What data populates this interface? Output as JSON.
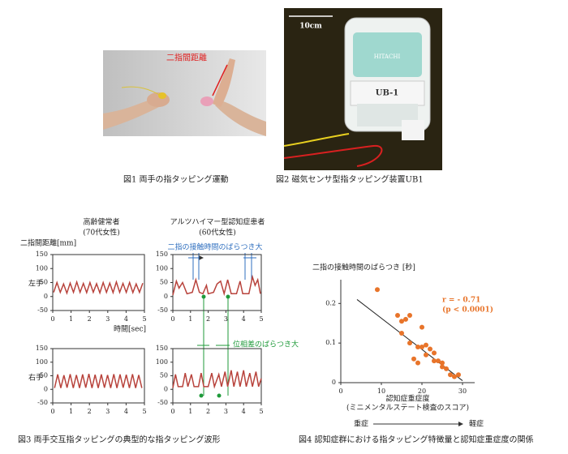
{
  "figure1": {
    "label": "二指間距離",
    "caption": "図1 両手の指タッピング運動"
  },
  "figure2": {
    "scale_label": "10cm",
    "brand": "HITACHI",
    "model": "UB-1",
    "caption": "図2 磁気センサ型指タッピング装置UB1"
  },
  "figure3": {
    "columns": [
      {
        "name": "高齢健常者",
        "detail": "(70代女性)"
      },
      {
        "name": "アルツハイマー型認知症患者",
        "detail": "(60代女性)"
      }
    ],
    "rows": [
      "左手",
      "右手"
    ],
    "y_label": "二指間距離[mm]",
    "x_label": "時間[sec]",
    "annotations": [
      "二指の接触時間のばらつき大",
      "位相差のばらつき大"
    ],
    "caption": "図3 両手交互指タッピングの典型的な指タッピング波形"
  },
  "chart_data": [
    {
      "type": "line",
      "xlim": [
        0,
        5
      ],
      "xticks": [
        0,
        1,
        2,
        3,
        4,
        5
      ],
      "ylim": [
        -50,
        150
      ],
      "yticks": [
        150,
        100,
        50,
        0,
        -50
      ],
      "x": [
        0.05,
        0.23,
        0.41,
        0.59,
        0.77,
        0.95,
        1.13,
        1.31,
        1.49,
        1.67,
        1.85,
        2.03,
        2.21,
        2.39,
        2.57,
        2.75,
        2.93,
        3.11,
        3.29,
        3.47,
        3.65,
        3.83,
        4.01,
        4.19,
        4.37,
        4.55,
        4.73,
        4.91
      ],
      "series": [
        {
          "color": "#b8433c",
          "values": [
            15,
            50,
            15,
            45,
            12,
            48,
            15,
            52,
            15,
            47,
            14,
            50,
            15,
            46,
            13,
            50,
            15,
            48,
            14,
            52,
            15,
            47,
            15,
            50,
            14,
            45,
            15,
            48
          ]
        }
      ]
    },
    {
      "type": "line",
      "xlim": [
        0,
        5
      ],
      "xticks": [
        0,
        1,
        2,
        3,
        4,
        5
      ],
      "ylim": [
        -50,
        150
      ],
      "yticks": [
        150,
        100,
        50,
        0,
        -50
      ],
      "x": [
        0,
        0.2,
        0.35,
        0.55,
        0.8,
        1.1,
        1.3,
        1.5,
        1.7,
        1.9,
        2.0,
        2.3,
        2.5,
        2.7,
        2.9,
        3.1,
        3.3,
        3.6,
        3.8,
        3.95,
        4.3,
        4.5,
        4.65,
        4.8,
        4.95
      ],
      "series": [
        {
          "color": "#b8433c",
          "values": [
            5,
            55,
            30,
            50,
            10,
            15,
            60,
            15,
            10,
            40,
            10,
            15,
            45,
            55,
            10,
            60,
            10,
            10,
            55,
            10,
            10,
            70,
            40,
            60,
            10
          ]
        }
      ]
    },
    {
      "type": "line",
      "xlim": [
        0,
        5
      ],
      "xticks": [
        0,
        1,
        2,
        3,
        4,
        5
      ],
      "ylim": [
        -50,
        150
      ],
      "yticks": [
        150,
        100,
        50,
        0,
        -50
      ],
      "x": [
        0.1,
        0.27,
        0.44,
        0.61,
        0.78,
        0.95,
        1.12,
        1.29,
        1.46,
        1.63,
        1.8,
        1.97,
        2.14,
        2.31,
        2.48,
        2.65,
        2.82,
        2.99,
        3.16,
        3.33,
        3.5,
        3.67,
        3.84,
        4.01,
        4.18,
        4.35,
        4.52,
        4.69,
        4.86
      ],
      "series": [
        {
          "color": "#b8433c",
          "values": [
            5,
            55,
            5,
            52,
            6,
            56,
            5,
            53,
            5,
            55,
            6,
            57,
            5,
            54,
            5,
            55,
            6,
            53,
            5,
            56,
            5,
            55,
            6,
            54,
            5,
            56,
            5,
            53,
            5
          ]
        }
      ]
    },
    {
      "type": "line",
      "xlim": [
        0,
        5
      ],
      "xticks": [
        0,
        1,
        2,
        3,
        4,
        5
      ],
      "ylim": [
        -50,
        150
      ],
      "yticks": [
        150,
        100,
        50,
        0,
        -50
      ],
      "x": [
        0,
        0.15,
        0.3,
        0.55,
        0.7,
        0.85,
        1.05,
        1.2,
        1.45,
        1.6,
        1.75,
        2.0,
        2.2,
        2.35,
        2.6,
        2.75,
        2.95,
        3.1,
        3.3,
        3.45,
        3.65,
        3.8,
        4.0,
        4.15,
        4.35,
        4.5,
        4.7,
        4.85,
        5.0
      ],
      "series": [
        {
          "color": "#b8433c",
          "values": [
            5,
            55,
            10,
            10,
            60,
            10,
            55,
            10,
            10,
            60,
            10,
            10,
            60,
            10,
            55,
            10,
            65,
            10,
            70,
            10,
            65,
            10,
            70,
            10,
            60,
            10,
            65,
            10,
            40
          ]
        }
      ]
    },
    {
      "type": "scatter",
      "title": "二指の接触時間のばらつき [秒]",
      "x_label": "認知症重症度",
      "x_sublabel": "(ミニメンタルステート検査のスコア)",
      "xlim": [
        0,
        33
      ],
      "xticks": [
        0,
        10,
        20,
        30
      ],
      "ylim": [
        0,
        0.26
      ],
      "yticks": [
        0,
        0.1,
        0.2
      ],
      "color": "#e8742a",
      "x": [
        9,
        14,
        15,
        16,
        17,
        15,
        20,
        17,
        19,
        20,
        21,
        22,
        21,
        23,
        18,
        19,
        23,
        24,
        25,
        25,
        26,
        27,
        28,
        29
      ],
      "values": [
        0.235,
        0.17,
        0.155,
        0.16,
        0.17,
        0.125,
        0.14,
        0.1,
        0.09,
        0.09,
        0.095,
        0.085,
        0.07,
        0.075,
        0.06,
        0.05,
        0.055,
        0.055,
        0.05,
        0.04,
        0.035,
        0.02,
        0.015,
        0.02
      ],
      "trend": {
        "x": [
          4,
          30
        ],
        "values": [
          0.21,
          0.005
        ]
      },
      "annotations": [
        "r = - 0.71",
        "(p < 0.0001)"
      ],
      "severity": [
        "重症",
        "軽症"
      ],
      "caption": "図4 認知症群における指タッピング特徴量と認知症重症度の関係"
    }
  ]
}
